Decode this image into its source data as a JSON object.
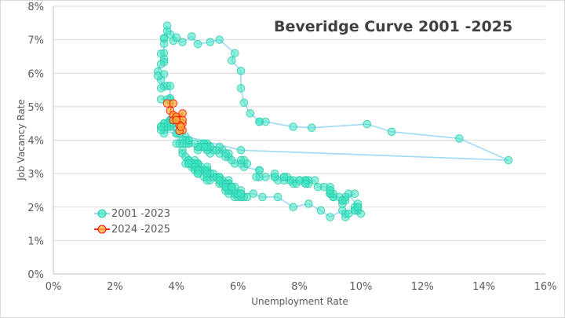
{
  "chart_data": {
    "type": "scatter",
    "title": "Beveridge Curve 2001 -2025",
    "xlabel": "Unemployment Rate",
    "ylabel": "Job Vacancy Rate",
    "xlim": [
      0,
      16
    ],
    "ylim": [
      0,
      8
    ],
    "x_ticks": [
      "0%",
      "2%",
      "4%",
      "6%",
      "8%",
      "10%",
      "12%",
      "14%",
      "16%"
    ],
    "y_ticks": [
      "0%",
      "1%",
      "2%",
      "3%",
      "4%",
      "5%",
      "6%",
      "7%",
      "8%"
    ],
    "grid": "horizontal",
    "legend_position": "lower-left",
    "colors": {
      "line_2001": "#9fd9f5",
      "marker_2001": "#3ee6c4",
      "line_2024": "#ff2a2a",
      "marker_2024": "#f5b33b"
    },
    "series": [
      {
        "name": "2001 -2023",
        "points": [
          [
            4.2,
            3.7
          ],
          [
            4.2,
            3.6
          ],
          [
            4.3,
            3.5
          ],
          [
            4.4,
            3.4
          ],
          [
            4.3,
            3.3
          ],
          [
            4.5,
            3.3
          ],
          [
            4.6,
            3.2
          ],
          [
            4.9,
            3.1
          ],
          [
            5.0,
            3.0
          ],
          [
            5.3,
            2.9
          ],
          [
            5.5,
            2.8
          ],
          [
            5.7,
            2.7
          ],
          [
            5.7,
            2.8
          ],
          [
            5.7,
            2.7
          ],
          [
            5.7,
            2.6
          ],
          [
            5.9,
            2.6
          ],
          [
            5.8,
            2.5
          ],
          [
            5.8,
            2.6
          ],
          [
            5.8,
            2.5
          ],
          [
            5.7,
            2.5
          ],
          [
            5.7,
            2.6
          ],
          [
            5.7,
            2.5
          ],
          [
            5.9,
            2.4
          ],
          [
            6.0,
            2.4
          ],
          [
            5.8,
            2.5
          ],
          [
            5.9,
            2.4
          ],
          [
            5.9,
            2.3
          ],
          [
            6.0,
            2.3
          ],
          [
            6.1,
            2.3
          ],
          [
            6.3,
            2.3
          ],
          [
            6.2,
            2.3
          ],
          [
            6.1,
            2.3
          ],
          [
            6.1,
            2.4
          ],
          [
            6.0,
            2.4
          ],
          [
            5.8,
            2.5
          ],
          [
            5.7,
            2.4
          ],
          [
            5.7,
            2.5
          ],
          [
            5.6,
            2.5
          ],
          [
            5.8,
            2.6
          ],
          [
            5.6,
            2.6
          ],
          [
            5.6,
            2.6
          ],
          [
            5.6,
            2.7
          ],
          [
            5.5,
            2.7
          ],
          [
            5.4,
            2.7
          ],
          [
            5.4,
            2.8
          ],
          [
            5.5,
            2.7
          ],
          [
            5.4,
            2.8
          ],
          [
            5.4,
            2.9
          ],
          [
            5.3,
            2.9
          ],
          [
            5.4,
            2.9
          ],
          [
            5.2,
            3.0
          ],
          [
            5.2,
            2.9
          ],
          [
            5.1,
            3.0
          ],
          [
            5.0,
            3.1
          ],
          [
            5.0,
            3.1
          ],
          [
            4.9,
            3.1
          ],
          [
            5.0,
            3.1
          ],
          [
            5.0,
            3.1
          ],
          [
            5.0,
            3.2
          ],
          [
            4.9,
            3.1
          ],
          [
            4.7,
            3.2
          ],
          [
            4.8,
            3.2
          ],
          [
            4.7,
            3.3
          ],
          [
            4.7,
            3.3
          ],
          [
            4.6,
            3.3
          ],
          [
            4.6,
            3.4
          ],
          [
            4.7,
            3.2
          ],
          [
            4.7,
            3.3
          ],
          [
            4.5,
            3.3
          ],
          [
            4.4,
            3.4
          ],
          [
            4.5,
            3.3
          ],
          [
            4.4,
            3.4
          ],
          [
            4.6,
            3.3
          ],
          [
            4.5,
            3.2
          ],
          [
            4.4,
            3.3
          ],
          [
            4.5,
            3.3
          ],
          [
            4.4,
            3.3
          ],
          [
            4.6,
            3.2
          ],
          [
            4.7,
            3.1
          ],
          [
            4.6,
            3.1
          ],
          [
            4.7,
            3.0
          ],
          [
            4.7,
            3.1
          ],
          [
            4.7,
            3.0
          ],
          [
            5.0,
            2.9
          ],
          [
            5.0,
            3.0
          ],
          [
            4.9,
            2.9
          ],
          [
            5.1,
            2.8
          ],
          [
            5.0,
            2.8
          ],
          [
            5.4,
            2.8
          ],
          [
            5.6,
            2.6
          ],
          [
            5.8,
            2.6
          ],
          [
            6.1,
            2.5
          ],
          [
            6.1,
            2.4
          ],
          [
            6.5,
            2.4
          ],
          [
            6.8,
            2.3
          ],
          [
            7.3,
            2.3
          ],
          [
            7.8,
            2.0
          ],
          [
            8.3,
            2.1
          ],
          [
            8.7,
            1.9
          ],
          [
            9.0,
            1.7
          ],
          [
            9.4,
            1.9
          ],
          [
            9.5,
            1.7
          ],
          [
            9.5,
            1.8
          ],
          [
            9.6,
            1.8
          ],
          [
            9.8,
            1.9
          ],
          [
            10.0,
            1.8
          ],
          [
            9.9,
            1.9
          ],
          [
            9.9,
            2.0
          ],
          [
            9.8,
            2.0
          ],
          [
            9.8,
            1.9
          ],
          [
            9.9,
            2.1
          ],
          [
            9.9,
            2.0
          ],
          [
            9.6,
            2.4
          ],
          [
            9.4,
            2.1
          ],
          [
            9.4,
            2.2
          ],
          [
            9.5,
            2.2
          ],
          [
            9.5,
            2.3
          ],
          [
            9.4,
            2.2
          ],
          [
            9.8,
            2.4
          ],
          [
            9.3,
            2.3
          ],
          [
            9.1,
            2.3
          ],
          [
            9.0,
            2.4
          ],
          [
            9.0,
            2.4
          ],
          [
            9.1,
            2.3
          ],
          [
            9.0,
            2.5
          ],
          [
            9.1,
            2.4
          ],
          [
            9.0,
            2.4
          ],
          [
            9.0,
            2.6
          ],
          [
            9.0,
            2.5
          ],
          [
            8.8,
            2.6
          ],
          [
            8.6,
            2.6
          ],
          [
            8.5,
            2.8
          ],
          [
            8.3,
            2.7
          ],
          [
            8.3,
            2.8
          ],
          [
            8.2,
            2.8
          ],
          [
            8.2,
            2.7
          ],
          [
            8.2,
            2.8
          ],
          [
            8.2,
            2.8
          ],
          [
            8.2,
            2.7
          ],
          [
            8.0,
            2.8
          ],
          [
            7.8,
            2.8
          ],
          [
            7.8,
            2.7
          ],
          [
            7.7,
            2.8
          ],
          [
            7.9,
            2.7
          ],
          [
            8.0,
            2.8
          ],
          [
            7.7,
            2.8
          ],
          [
            7.5,
            2.8
          ],
          [
            7.6,
            2.9
          ],
          [
            7.5,
            2.9
          ],
          [
            7.5,
            2.9
          ],
          [
            7.3,
            2.8
          ],
          [
            7.2,
            2.9
          ],
          [
            7.2,
            2.9
          ],
          [
            7.2,
            3.0
          ],
          [
            6.9,
            2.9
          ],
          [
            6.7,
            2.9
          ],
          [
            6.6,
            2.9
          ],
          [
            6.7,
            3.1
          ],
          [
            6.7,
            3.1
          ],
          [
            6.2,
            3.2
          ],
          [
            6.3,
            3.3
          ],
          [
            6.1,
            3.3
          ],
          [
            6.2,
            3.4
          ],
          [
            6.1,
            3.4
          ],
          [
            5.9,
            3.3
          ],
          [
            5.7,
            3.5
          ],
          [
            5.8,
            3.4
          ],
          [
            5.6,
            3.5
          ],
          [
            5.7,
            3.6
          ],
          [
            5.5,
            3.7
          ],
          [
            5.4,
            3.6
          ],
          [
            5.4,
            3.8
          ],
          [
            5.6,
            3.6
          ],
          [
            5.3,
            3.7
          ],
          [
            5.2,
            3.7
          ],
          [
            5.1,
            3.6
          ],
          [
            5.0,
            3.8
          ],
          [
            5.0,
            3.7
          ],
          [
            5.1,
            3.8
          ],
          [
            5.0,
            3.7
          ],
          [
            4.9,
            3.9
          ],
          [
            4.9,
            3.8
          ],
          [
            5.0,
            3.9
          ],
          [
            5.1,
            3.8
          ],
          [
            4.8,
            3.9
          ],
          [
            4.9,
            3.8
          ],
          [
            4.8,
            3.8
          ],
          [
            4.9,
            3.9
          ],
          [
            5.0,
            3.8
          ],
          [
            4.9,
            3.8
          ],
          [
            4.7,
            3.7
          ],
          [
            4.7,
            3.8
          ],
          [
            4.7,
            3.8
          ],
          [
            4.6,
            3.9
          ],
          [
            4.4,
            3.9
          ],
          [
            4.4,
            3.9
          ],
          [
            4.4,
            4.0
          ],
          [
            4.3,
            4.1
          ],
          [
            4.3,
            3.9
          ],
          [
            4.4,
            4.0
          ],
          [
            4.3,
            4.0
          ],
          [
            4.2,
            4.0
          ],
          [
            4.2,
            3.9
          ],
          [
            4.1,
            3.9
          ],
          [
            4.0,
            3.9
          ],
          [
            4.1,
            4.2
          ],
          [
            4.0,
            4.2
          ],
          [
            4.0,
            4.2
          ],
          [
            3.8,
            4.4
          ],
          [
            4.0,
            4.4
          ],
          [
            3.8,
            4.5
          ],
          [
            3.8,
            4.5
          ],
          [
            3.7,
            4.5
          ],
          [
            3.8,
            4.6
          ],
          [
            3.8,
            4.6
          ],
          [
            3.9,
            4.5
          ],
          [
            4.0,
            4.6
          ],
          [
            3.8,
            4.4
          ],
          [
            3.8,
            4.6
          ],
          [
            3.7,
            4.5
          ],
          [
            3.6,
            4.4
          ],
          [
            3.6,
            4.5
          ],
          [
            3.7,
            4.4
          ],
          [
            3.6,
            4.5
          ],
          [
            3.5,
            4.4
          ],
          [
            3.6,
            4.4
          ],
          [
            3.6,
            4.3
          ],
          [
            3.6,
            4.2
          ],
          [
            3.5,
            4.4
          ],
          [
            3.5,
            4.3
          ],
          [
            6.1,
            3.7
          ],
          [
            14.8,
            3.4
          ],
          [
            13.2,
            4.05
          ],
          [
            11.0,
            4.25
          ],
          [
            10.2,
            4.48
          ],
          [
            8.4,
            4.37
          ],
          [
            7.8,
            4.4
          ],
          [
            6.9,
            4.55
          ],
          [
            6.7,
            4.55
          ],
          [
            6.7,
            4.55
          ],
          [
            6.4,
            4.8
          ],
          [
            6.2,
            5.12
          ],
          [
            6.1,
            5.55
          ],
          [
            6.1,
            6.07
          ],
          [
            5.8,
            6.38
          ],
          [
            5.9,
            6.6
          ],
          [
            5.4,
            7.0
          ],
          [
            5.1,
            6.93
          ],
          [
            4.7,
            6.87
          ],
          [
            4.5,
            7.1
          ],
          [
            4.2,
            6.93
          ],
          [
            3.9,
            6.97
          ],
          [
            4.0,
            7.07
          ],
          [
            3.8,
            7.16
          ],
          [
            3.7,
            7.26
          ],
          [
            3.7,
            7.42
          ],
          [
            3.6,
            7.03
          ],
          [
            3.6,
            7.05
          ],
          [
            3.6,
            6.88
          ],
          [
            3.6,
            6.6
          ],
          [
            3.5,
            6.58
          ],
          [
            3.6,
            6.42
          ],
          [
            3.6,
            6.33
          ],
          [
            3.5,
            6.27
          ],
          [
            3.4,
            6.05
          ],
          [
            3.6,
            5.97
          ],
          [
            3.5,
            5.8
          ],
          [
            3.4,
            5.92
          ],
          [
            3.6,
            5.6
          ],
          [
            3.7,
            5.62
          ],
          [
            3.5,
            5.55
          ],
          [
            3.8,
            5.62
          ],
          [
            3.8,
            5.2
          ],
          [
            3.8,
            5.25
          ],
          [
            3.5,
            5.22
          ],
          [
            3.7,
            5.22
          ]
        ]
      },
      {
        "name": "2024 -2025",
        "points": [
          [
            3.7,
            5.1
          ],
          [
            3.9,
            5.1
          ],
          [
            3.8,
            4.88
          ],
          [
            3.9,
            4.75
          ],
          [
            3.9,
            4.6
          ],
          [
            4.0,
            4.65
          ],
          [
            4.0,
            4.7
          ],
          [
            4.2,
            4.8
          ],
          [
            4.1,
            4.6
          ],
          [
            4.2,
            4.5
          ],
          [
            4.2,
            4.6
          ],
          [
            4.1,
            4.45
          ],
          [
            4.2,
            4.3
          ],
          [
            4.1,
            4.28
          ],
          [
            4.15,
            4.4
          ],
          [
            4.0,
            4.6
          ]
        ]
      }
    ]
  }
}
